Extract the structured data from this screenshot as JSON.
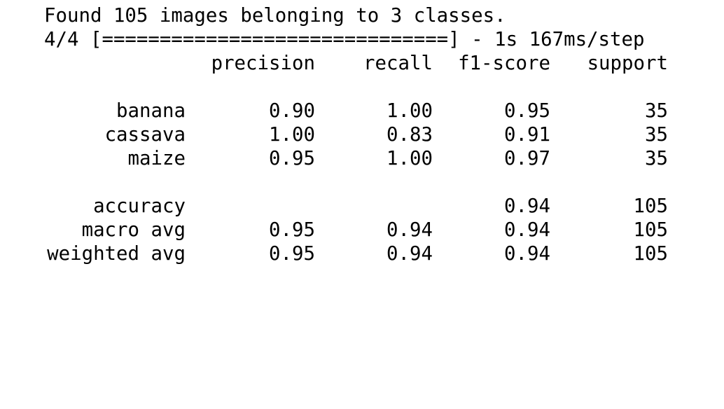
{
  "log": {
    "found_line": "Found 105 images belonging to 3 classes.",
    "progress_line": "4/4 [==============================] - 1s 167ms/step"
  },
  "report": {
    "headers": {
      "precision": "precision",
      "recall": "recall",
      "f1": "f1-score",
      "support": "support"
    },
    "classes": [
      {
        "label": "banana",
        "precision": "0.90",
        "recall": "1.00",
        "f1": "0.95",
        "support": "35"
      },
      {
        "label": "cassava",
        "precision": "1.00",
        "recall": "0.83",
        "f1": "0.91",
        "support": "35"
      },
      {
        "label": "maize",
        "precision": "0.95",
        "recall": "1.00",
        "f1": "0.97",
        "support": "35"
      }
    ],
    "summary": [
      {
        "label": "accuracy",
        "precision": "",
        "recall": "",
        "f1": "0.94",
        "support": "105"
      },
      {
        "label": "macro avg",
        "precision": "0.95",
        "recall": "0.94",
        "f1": "0.94",
        "support": "105"
      },
      {
        "label": "weighted avg",
        "precision": "0.95",
        "recall": "0.94",
        "f1": "0.94",
        "support": "105"
      }
    ]
  }
}
